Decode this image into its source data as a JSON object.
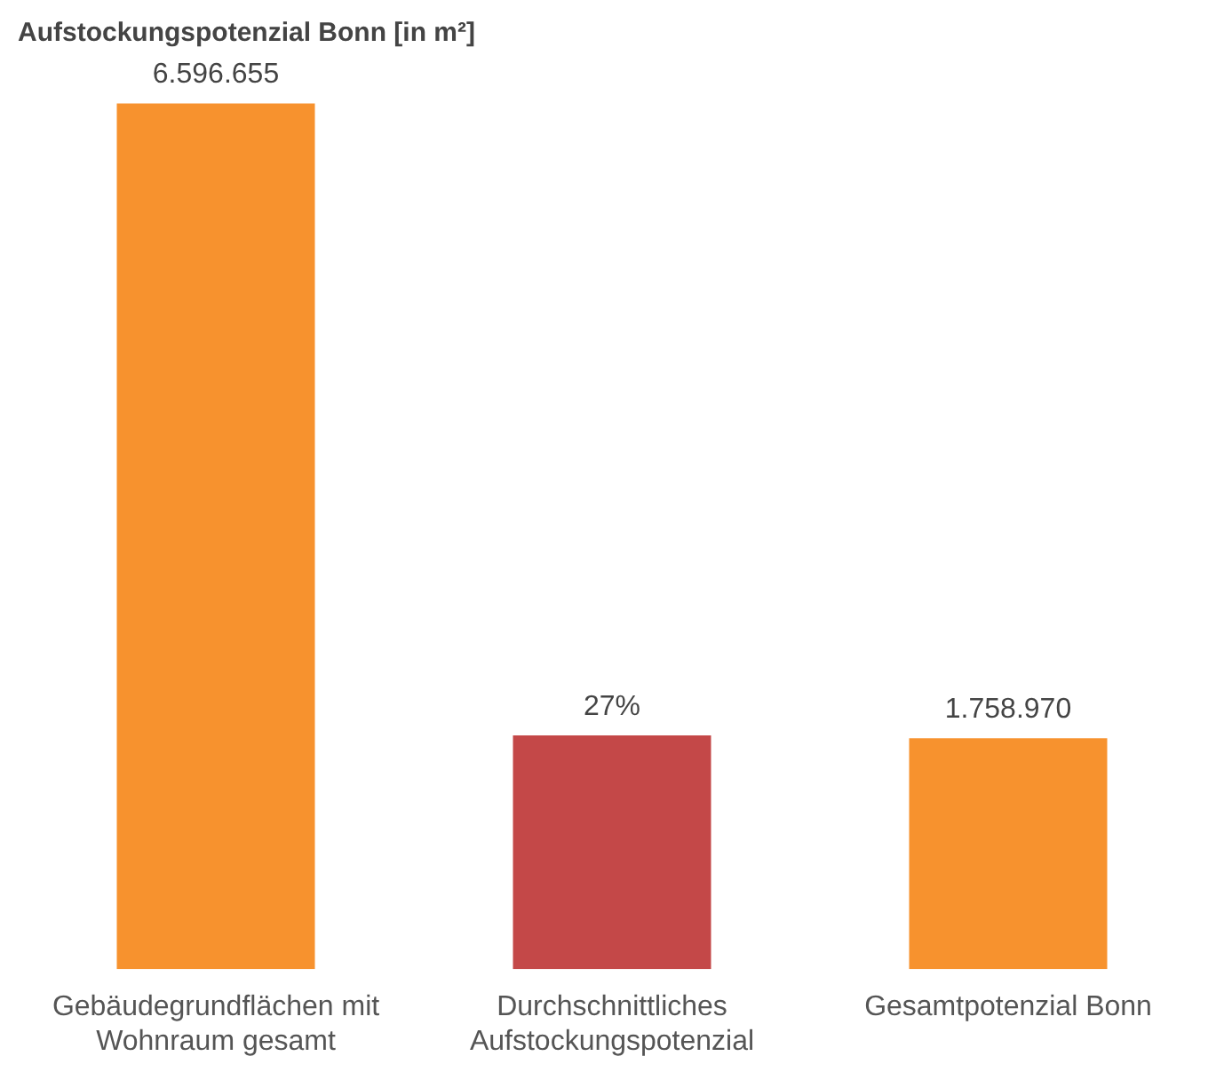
{
  "chart_data": {
    "type": "bar",
    "title": "Aufstockungspotenzial Bonn [in m²]",
    "categories": [
      "Gebäudegrundflächen mit Wohnraum gesamt",
      "Durchschnittliches Aufstockungspotenzial",
      "Gesamtpotenzial Bonn"
    ],
    "series": [
      {
        "color": "#f7922e",
        "values": [
          6596655,
          null,
          1758970
        ],
        "value_labels": [
          "6.596.655",
          null,
          "1.758.970"
        ]
      },
      {
        "color": "#c44848",
        "axis": "y2",
        "values": [
          null,
          27,
          null
        ],
        "value_labels": [
          null,
          "27%",
          null
        ]
      }
    ],
    "ylim": [
      0,
      6600000
    ],
    "y2lim": [
      0,
      100
    ],
    "tick_labels": "x",
    "grid": false,
    "legend": false
  }
}
